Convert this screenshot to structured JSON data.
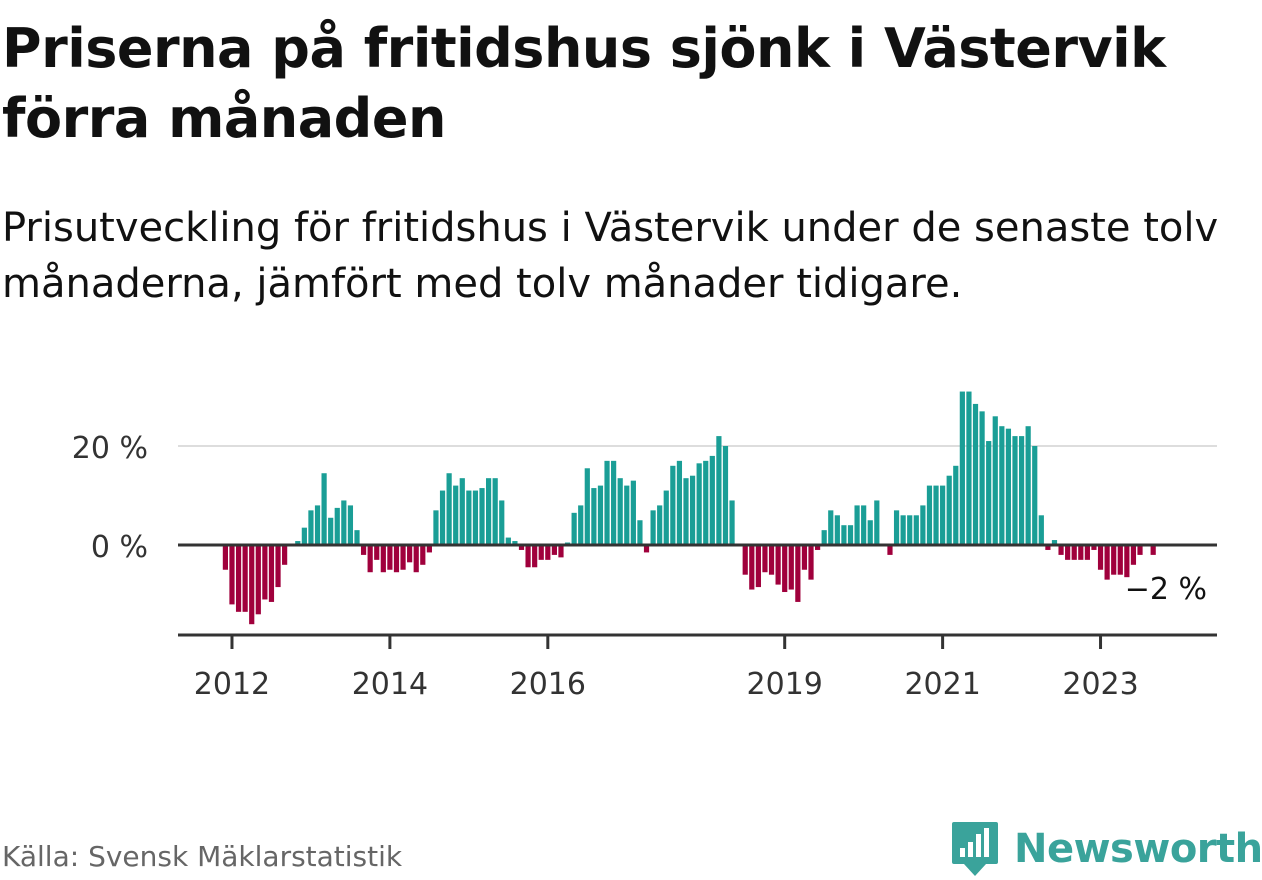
{
  "title": "Priserna på fritidshus sjönk i Västervik förra månaden",
  "subtitle": "Prisutveckling för fritidshus i Västervik under de senaste tolv månaderna, jämfört med tolv månader tidigare.",
  "footer": {
    "source": "Källa: Svensk Mäklarstatistik",
    "brand": "Newsworthy"
  },
  "colors": {
    "positive": "#1a9e96",
    "negative": "#a0003c",
    "grid": "#dddddd",
    "axis": "#333333",
    "brand": "#3aa39b"
  },
  "chart_data": {
    "type": "bar",
    "title": "Priserna på fritidshus sjönk i Västervik förra månaden",
    "xlabel": "",
    "ylabel": "",
    "ylim": [
      -18,
      34
    ],
    "yticks": [
      {
        "value": 0,
        "label": "0 %"
      },
      {
        "value": 20,
        "label": "20 %"
      }
    ],
    "xticks": [
      {
        "year": 2012,
        "label": "2012"
      },
      {
        "year": 2014,
        "label": "2014"
      },
      {
        "year": 2016,
        "label": "2016"
      },
      {
        "year": 2019,
        "label": "2019"
      },
      {
        "year": 2021,
        "label": "2021"
      },
      {
        "year": 2023,
        "label": "2023"
      }
    ],
    "start": {
      "year": 2011,
      "month": 12
    },
    "unit": "%",
    "annotation": {
      "label": "−2 %",
      "value": -2
    },
    "values": [
      -5,
      -12,
      -13.5,
      -13.5,
      -16,
      -14,
      -11,
      -11.5,
      -8.5,
      -4,
      null,
      0.8,
      3.5,
      7,
      8,
      14.5,
      5.5,
      7.5,
      9,
      8,
      3,
      -2,
      -5.5,
      -3,
      -5.5,
      -5,
      -5.5,
      -5,
      -3.5,
      -5.5,
      -4,
      -1.5,
      7,
      11,
      14.5,
      12,
      13.5,
      11,
      11,
      11.5,
      13.5,
      13.5,
      9,
      1.5,
      0.8,
      -1,
      -4.5,
      -4.5,
      -3,
      -3,
      -2,
      -2.5,
      0.5,
      6.5,
      8,
      15.5,
      11.5,
      12,
      17,
      17,
      13.5,
      12,
      13,
      5,
      -1.5,
      7,
      8,
      11,
      16,
      17,
      13.5,
      14,
      16.5,
      17,
      18,
      22,
      20,
      9,
      null,
      -6,
      -9,
      -8.5,
      -5.5,
      -6,
      -8,
      -9.5,
      -9,
      -11.5,
      -5,
      -7,
      -1,
      3,
      7,
      6,
      4,
      4,
      8,
      8,
      5,
      9,
      null,
      -2,
      7,
      6,
      6,
      6,
      8,
      12,
      12,
      12,
      14,
      16,
      31,
      31,
      28.5,
      27,
      21,
      26,
      24,
      23.5,
      22,
      22,
      24,
      20,
      6,
      -1,
      1,
      -2,
      -3,
      -3,
      -3,
      -3,
      -1,
      -5,
      -7,
      -6,
      -6,
      -6.5,
      -4,
      -2,
      null,
      -2
    ]
  }
}
